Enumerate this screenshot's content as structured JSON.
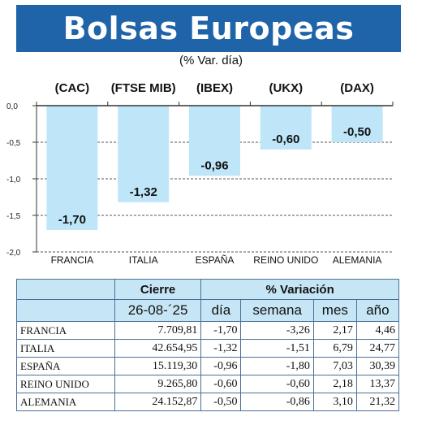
{
  "title": "Bolsas Europeas",
  "subtitle": "(% Var. día)",
  "colors": {
    "title_band": "#1f63a8",
    "bar": "#bfe6f8",
    "table_header": "#c7e6f5"
  },
  "chart_data": {
    "type": "bar",
    "categories": [
      "FRANCIA",
      "ITALIA",
      "ESPAÑA",
      "REINO UNIDO",
      "ALEMANIA"
    ],
    "index_labels": [
      "(CAC)",
      "(FTSE MIB)",
      "(IBEX)",
      "(UKX)",
      "(DAX)"
    ],
    "values": [
      -1.7,
      -1.32,
      -0.96,
      -0.6,
      -0.5
    ],
    "value_labels": [
      "-1,70",
      "-1,32",
      "-0,96",
      "-0,60",
      "-0,50"
    ],
    "y_ticks": [
      "0,0",
      "-0,5",
      "-1,0",
      "-1,5",
      "-2,0"
    ],
    "y_tick_values": [
      0,
      -0.5,
      -1.0,
      -1.5,
      -2.0
    ],
    "ylim": [
      -2.0,
      0
    ],
    "grid": true
  },
  "table": {
    "header_cierre": "Cierre",
    "header_variacion": "% Variación",
    "date": "26-08-´25",
    "columns": [
      "día",
      "semana",
      "mes",
      "año"
    ],
    "rows": [
      {
        "name": "FRANCIA",
        "cierre": "7.709,81",
        "dia": "-1,70",
        "semana": "-3,26",
        "mes": "2,17",
        "ano": "4,46"
      },
      {
        "name": "ITALIA",
        "cierre": "42.654,95",
        "dia": "-1,32",
        "semana": "-1,51",
        "mes": "6,79",
        "ano": "24,77"
      },
      {
        "name": "ESPAÑA",
        "cierre": "15.119,30",
        "dia": "-0,96",
        "semana": "-1,80",
        "mes": "7,03",
        "ano": "30,39"
      },
      {
        "name": "REINO UNIDO",
        "cierre": "9.265,80",
        "dia": "-0,60",
        "semana": "-0,60",
        "mes": "2,18",
        "ano": "13,37"
      },
      {
        "name": "ALEMANIA",
        "cierre": "24.152,87",
        "dia": "-0,50",
        "semana": "-0,86",
        "mes": "3,10",
        "ano": "21,32"
      }
    ]
  }
}
